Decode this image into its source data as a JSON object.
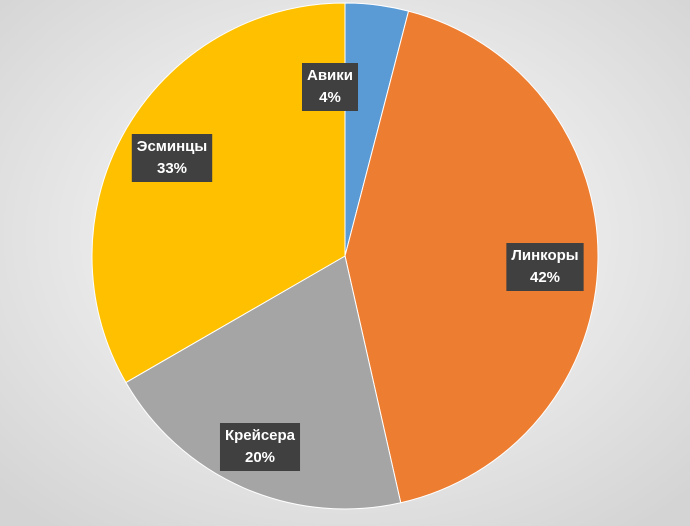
{
  "chart_data": {
    "type": "pie",
    "categories": [
      "Авики",
      "Линкоры",
      "Крейсера",
      "Эсминцы"
    ],
    "values": [
      4,
      42,
      20,
      33
    ],
    "value_labels": [
      "4%",
      "42%",
      "20%",
      "33%"
    ],
    "colors": [
      "#5b9bd5",
      "#ed7d31",
      "#a5a5a5",
      "#ffc000"
    ]
  }
}
